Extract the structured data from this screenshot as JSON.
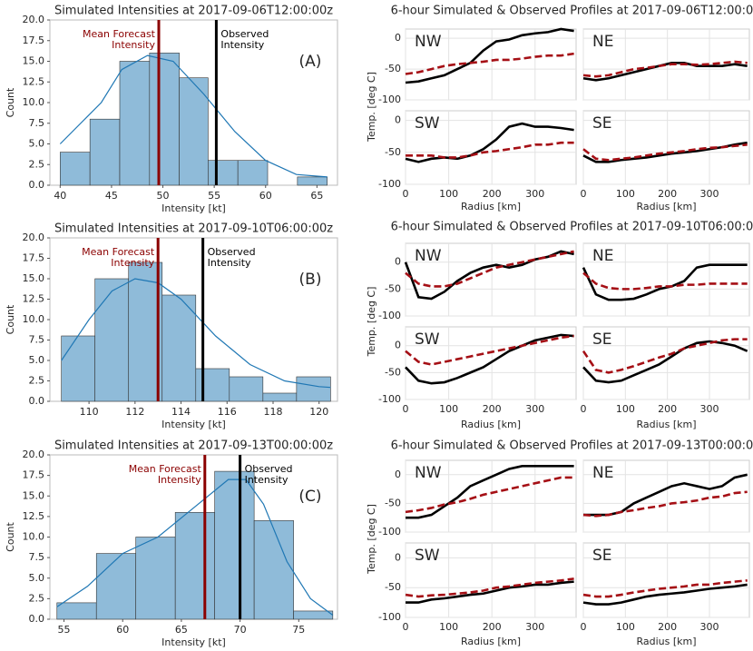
{
  "chart_data": [
    {
      "type": "histogram",
      "title": "Simulated Intensities at 2017-09-06T12:00:00z",
      "xlabel": "Intensity [kt]",
      "ylabel": "Count",
      "panel_label": "(A)",
      "bins": [
        40,
        42.9,
        45.8,
        48.7,
        51.6,
        54.4,
        57.3,
        60.2,
        63.1,
        66
      ],
      "values": [
        4,
        8,
        15,
        16,
        13,
        3,
        3,
        0,
        1
      ],
      "color": "#8fbbd9",
      "kde": {
        "x": [
          40,
          42,
          44,
          46,
          48.5,
          51,
          54,
          57,
          60,
          63,
          66
        ],
        "values": [
          5,
          7.5,
          10,
          14,
          15.7,
          15,
          11,
          6.5,
          3,
          1.3,
          1
        ],
        "color": "#1f77b4"
      },
      "mean_forecast": {
        "value": 49.6,
        "label": [
          "Mean Forecast",
          "Intensity"
        ],
        "color": "#8b0000"
      },
      "observed": {
        "value": 55.2,
        "label": [
          "Observed",
          "Intensity"
        ],
        "color": "#000000"
      },
      "xlim": [
        39,
        67
      ],
      "xticks": [
        40,
        45,
        50,
        55,
        60,
        65
      ],
      "ylim": [
        0,
        20
      ],
      "yticks": [
        {
          "value": 0,
          "label": "0.0"
        },
        {
          "value": 2.5,
          "label": "2.5"
        },
        {
          "value": 5,
          "label": "5.0"
        },
        {
          "value": 7.5,
          "label": "7.5"
        },
        {
          "value": 10,
          "label": "10.0"
        },
        {
          "value": 12.5,
          "label": "12.5"
        },
        {
          "value": 15,
          "label": "15.0"
        },
        {
          "value": 17.5,
          "label": "17.5"
        },
        {
          "value": 20,
          "label": "20.0"
        }
      ]
    },
    {
      "type": "profiles",
      "title": "6-hour Simulated & Observed Profiles at 2017-09-06T12:00:00z",
      "xlabel": "Radius [km]",
      "ylabel": "Temp. [deg C]",
      "x": [
        0,
        30,
        60,
        90,
        120,
        150,
        180,
        210,
        240,
        270,
        300,
        330,
        360,
        390
      ],
      "xlim": [
        0,
        395
      ],
      "xticks": [
        0,
        100,
        200,
        300
      ],
      "ylim": [
        -100,
        15
      ],
      "yticks": [
        -100,
        -50,
        0
      ],
      "grid": true,
      "panels": [
        {
          "label": "NW",
          "series": [
            {
              "color": "#000000",
              "style": "solid",
              "values": [
                -72,
                -70,
                -65,
                -60,
                -50,
                -40,
                -20,
                -5,
                -2,
                5,
                8,
                10,
                15,
                12
              ]
            },
            {
              "color": "#a50f15",
              "style": "dashed",
              "values": [
                -58,
                -55,
                -50,
                -45,
                -42,
                -40,
                -38,
                -35,
                -35,
                -33,
                -30,
                -28,
                -28,
                -25
              ]
            }
          ]
        },
        {
          "label": "NE",
          "series": [
            {
              "color": "#000000",
              "style": "solid",
              "values": [
                -65,
                -68,
                -65,
                -60,
                -55,
                -50,
                -45,
                -40,
                -40,
                -45,
                -45,
                -45,
                -42,
                -45
              ]
            },
            {
              "color": "#a50f15",
              "style": "dashed",
              "values": [
                -60,
                -62,
                -60,
                -55,
                -50,
                -48,
                -45,
                -42,
                -42,
                -43,
                -42,
                -40,
                -38,
                -40
              ]
            }
          ]
        },
        {
          "label": "SW",
          "series": [
            {
              "color": "#000000",
              "style": "solid",
              "values": [
                -60,
                -65,
                -60,
                -58,
                -60,
                -55,
                -45,
                -30,
                -10,
                -5,
                -10,
                -10,
                -12,
                -15
              ]
            },
            {
              "color": "#a50f15",
              "style": "dashed",
              "values": [
                -55,
                -55,
                -55,
                -58,
                -58,
                -55,
                -50,
                -48,
                -45,
                -42,
                -38,
                -38,
                -35,
                -35
              ]
            }
          ]
        },
        {
          "label": "SE",
          "series": [
            {
              "color": "#000000",
              "style": "solid",
              "values": [
                -55,
                -65,
                -65,
                -62,
                -60,
                -58,
                -55,
                -52,
                -50,
                -48,
                -45,
                -42,
                -38,
                -35
              ]
            },
            {
              "color": "#a50f15",
              "style": "dashed",
              "values": [
                -45,
                -60,
                -62,
                -60,
                -58,
                -55,
                -52,
                -50,
                -48,
                -45,
                -43,
                -42,
                -40,
                -38
              ]
            }
          ]
        }
      ]
    },
    {
      "type": "histogram",
      "title": "Simulated Intensities at 2017-09-10T06:00:00z",
      "xlabel": "Intensity [kt]",
      "ylabel": "Count",
      "panel_label": "(B)",
      "bins": [
        108.8,
        110.26,
        111.72,
        113.18,
        114.64,
        116.1,
        117.56,
        119.02,
        120.5
      ],
      "values": [
        8,
        15,
        17,
        13,
        4,
        3,
        1,
        3
      ],
      "color": "#8fbbd9",
      "kde": {
        "x": [
          108.8,
          110,
          111,
          112,
          113,
          114,
          115.5,
          117,
          118.5,
          120,
          120.5
        ],
        "values": [
          5,
          10,
          13.5,
          15,
          14.5,
          12.5,
          8,
          4.5,
          2.5,
          1.8,
          1.7
        ],
        "color": "#1f77b4"
      },
      "mean_forecast": {
        "value": 113.0,
        "label": [
          "Mean Forecast",
          "Intensity"
        ],
        "color": "#8b0000"
      },
      "observed": {
        "value": 114.95,
        "label": [
          "Observed",
          "Intensity"
        ],
        "color": "#000000"
      },
      "xlim": [
        108.3,
        120.8
      ],
      "xticks": [
        110,
        112,
        114,
        116,
        118,
        120
      ],
      "ylim": [
        0,
        20
      ],
      "yticks": [
        {
          "value": 0,
          "label": "0.0"
        },
        {
          "value": 2.5,
          "label": "2.5"
        },
        {
          "value": 5,
          "label": "5.0"
        },
        {
          "value": 7.5,
          "label": "7.5"
        },
        {
          "value": 10,
          "label": "10.0"
        },
        {
          "value": 12.5,
          "label": "12.5"
        },
        {
          "value": 15,
          "label": "15.0"
        },
        {
          "value": 17.5,
          "label": "17.5"
        },
        {
          "value": 20,
          "label": "20.0"
        }
      ]
    },
    {
      "type": "profiles",
      "title": "6-hour Simulated & Observed Profiles at 2017-09-10T06:00:00z",
      "xlabel": "Radius [km]",
      "ylabel": "Temp. [deg C]",
      "x": [
        0,
        30,
        60,
        90,
        120,
        150,
        180,
        210,
        240,
        270,
        300,
        330,
        360,
        390
      ],
      "xlim": [
        0,
        395
      ],
      "xticks": [
        0,
        100,
        200,
        300
      ],
      "ylim": [
        -100,
        35
      ],
      "yticks": [
        -100,
        -50,
        0
      ],
      "grid": true,
      "panels": [
        {
          "label": "NW",
          "series": [
            {
              "color": "#000000",
              "style": "solid",
              "values": [
                0,
                -65,
                -68,
                -55,
                -35,
                -20,
                -10,
                -5,
                -10,
                -5,
                5,
                10,
                20,
                15
              ]
            },
            {
              "color": "#a50f15",
              "style": "dashed",
              "values": [
                -20,
                -40,
                -45,
                -45,
                -40,
                -30,
                -20,
                -10,
                -5,
                0,
                5,
                10,
                15,
                20
              ]
            }
          ]
        },
        {
          "label": "NE",
          "series": [
            {
              "color": "#000000",
              "style": "solid",
              "values": [
                -10,
                -60,
                -70,
                -70,
                -68,
                -60,
                -50,
                -45,
                -35,
                -10,
                -5,
                -5,
                -5,
                -5
              ]
            },
            {
              "color": "#a50f15",
              "style": "dashed",
              "values": [
                -20,
                -40,
                -48,
                -50,
                -50,
                -48,
                -45,
                -45,
                -42,
                -42,
                -40,
                -40,
                -40,
                -40
              ]
            }
          ]
        },
        {
          "label": "SW",
          "series": [
            {
              "color": "#000000",
              "style": "solid",
              "values": [
                -40,
                -65,
                -70,
                -68,
                -60,
                -50,
                -40,
                -25,
                -10,
                0,
                10,
                15,
                20,
                18
              ]
            },
            {
              "color": "#a50f15",
              "style": "dashed",
              "values": [
                -10,
                -30,
                -35,
                -30,
                -25,
                -20,
                -15,
                -10,
                -5,
                0,
                5,
                10,
                15,
                18
              ]
            }
          ]
        },
        {
          "label": "SE",
          "series": [
            {
              "color": "#000000",
              "style": "solid",
              "values": [
                -40,
                -65,
                -68,
                -65,
                -55,
                -45,
                -35,
                -20,
                -5,
                5,
                8,
                5,
                0,
                -10
              ]
            },
            {
              "color": "#a50f15",
              "style": "dashed",
              "values": [
                -10,
                -45,
                -50,
                -45,
                -38,
                -30,
                -22,
                -15,
                -5,
                0,
                5,
                10,
                12,
                12
              ]
            }
          ]
        }
      ]
    },
    {
      "type": "histogram",
      "title": "Simulated Intensities at 2017-09-13T00:00:00z",
      "xlabel": "Intensity [kt]",
      "ylabel": "Count",
      "panel_label": "(C)",
      "bins": [
        54.4,
        57.76,
        61.12,
        64.48,
        67.84,
        71.2,
        74.56,
        77.9
      ],
      "values": [
        2,
        8,
        10,
        13,
        18,
        12,
        1
      ],
      "color": "#8fbbd9",
      "kde": {
        "x": [
          54.4,
          57,
          60,
          63,
          66,
          69,
          70.5,
          72,
          74,
          76,
          77.9
        ],
        "values": [
          1.5,
          4,
          8,
          10,
          13.5,
          17,
          17,
          14,
          7,
          2.5,
          0.5
        ],
        "color": "#1f77b4"
      },
      "mean_forecast": {
        "value": 67.0,
        "label": [
          "Mean Forecast",
          "Intensity"
        ],
        "color": "#8b0000"
      },
      "observed": {
        "value": 70.0,
        "label": [
          "Observed",
          "Intensity"
        ],
        "color": "#000000"
      },
      "xlim": [
        53.8,
        78.3
      ],
      "xticks": [
        55,
        60,
        65,
        70,
        75
      ],
      "ylim": [
        0,
        20
      ],
      "yticks": [
        {
          "value": 0,
          "label": "0.0"
        },
        {
          "value": 2.5,
          "label": "2.5"
        },
        {
          "value": 5,
          "label": "5.0"
        },
        {
          "value": 7.5,
          "label": "7.5"
        },
        {
          "value": 10,
          "label": "10.0"
        },
        {
          "value": 12.5,
          "label": "12.5"
        },
        {
          "value": 15,
          "label": "15.0"
        },
        {
          "value": 17.5,
          "label": "17.5"
        },
        {
          "value": 20,
          "label": "20.0"
        }
      ]
    },
    {
      "type": "profiles",
      "title": "6-hour Simulated & Observed Profiles at 2017-09-13T00:00:00z",
      "xlabel": "Radius [km]",
      "ylabel": "Temp. [deg C]",
      "x": [
        0,
        30,
        60,
        90,
        120,
        150,
        180,
        210,
        240,
        270,
        300,
        330,
        360,
        390
      ],
      "xlim": [
        0,
        395
      ],
      "xticks": [
        0,
        100,
        200,
        300
      ],
      "ylim": [
        -100,
        25
      ],
      "yticks": [
        -100,
        -50,
        0
      ],
      "grid": true,
      "panels": [
        {
          "label": "NW",
          "series": [
            {
              "color": "#000000",
              "style": "solid",
              "values": [
                -75,
                -75,
                -70,
                -55,
                -40,
                -20,
                -10,
                0,
                10,
                15,
                15,
                15,
                15,
                15
              ]
            },
            {
              "color": "#a50f15",
              "style": "dashed",
              "values": [
                -65,
                -62,
                -58,
                -52,
                -48,
                -42,
                -35,
                -30,
                -25,
                -20,
                -15,
                -10,
                -5,
                -5
              ]
            }
          ]
        },
        {
          "label": "NE",
          "series": [
            {
              "color": "#000000",
              "style": "solid",
              "values": [
                -70,
                -70,
                -70,
                -65,
                -50,
                -40,
                -30,
                -20,
                -15,
                -20,
                -25,
                -20,
                -5,
                0
              ]
            },
            {
              "color": "#a50f15",
              "style": "dashed",
              "values": [
                -70,
                -72,
                -70,
                -65,
                -62,
                -58,
                -55,
                -50,
                -48,
                -45,
                -40,
                -38,
                -32,
                -30
              ]
            }
          ]
        },
        {
          "label": "SW",
          "series": [
            {
              "color": "#000000",
              "style": "solid",
              "values": [
                -75,
                -75,
                -70,
                -68,
                -65,
                -62,
                -60,
                -55,
                -50,
                -48,
                -45,
                -45,
                -42,
                -40
              ]
            },
            {
              "color": "#a50f15",
              "style": "dashed",
              "values": [
                -62,
                -65,
                -63,
                -62,
                -60,
                -58,
                -55,
                -50,
                -48,
                -45,
                -42,
                -40,
                -38,
                -35
              ]
            }
          ]
        },
        {
          "label": "SE",
          "series": [
            {
              "color": "#000000",
              "style": "solid",
              "values": [
                -75,
                -78,
                -78,
                -75,
                -70,
                -65,
                -62,
                -60,
                -58,
                -55,
                -52,
                -50,
                -48,
                -45
              ]
            },
            {
              "color": "#a50f15",
              "style": "dashed",
              "values": [
                -62,
                -65,
                -65,
                -62,
                -58,
                -55,
                -52,
                -50,
                -48,
                -45,
                -45,
                -42,
                -40,
                -38
              ]
            }
          ]
        }
      ]
    }
  ]
}
